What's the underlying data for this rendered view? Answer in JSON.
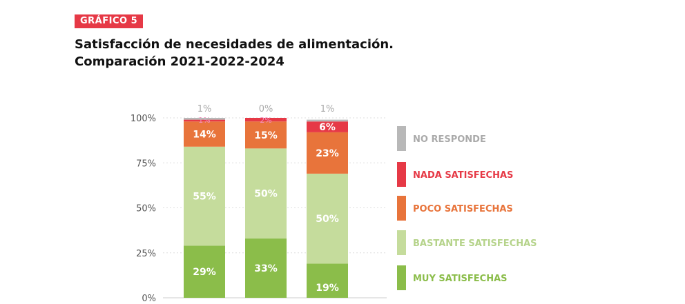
{
  "header": {
    "badge": "GRÁFICO 5",
    "title_line1": "Satisfacción de necesidades de alimentación.",
    "title_line2": "Comparación 2021-2022-2024"
  },
  "chart_data": {
    "type": "bar",
    "stacked": true,
    "yticks": [
      "0%",
      "25%",
      "50%",
      "75%",
      "100%"
    ],
    "ylim": [
      0,
      100
    ],
    "grid": true,
    "legend_position": "right",
    "series": [
      {
        "name": "MUY SATISFECHAS",
        "values": [
          29,
          33,
          19
        ],
        "labels": [
          "29%",
          "33%",
          "19%"
        ],
        "color": "#8bbd4a"
      },
      {
        "name": "BASTANTE SATISFECHAS",
        "values": [
          55,
          50,
          50
        ],
        "labels": [
          "55%",
          "50%",
          "50%"
        ],
        "color": "#c5dc9c",
        "legend_color": "#b5d38a"
      },
      {
        "name": "POCO SATISFECHAS",
        "values": [
          14,
          15,
          23
        ],
        "labels": [
          "14%",
          "15%",
          "23%"
        ],
        "color": "#e8743b"
      },
      {
        "name": "NADA SATISFECHAS",
        "values": [
          1,
          2,
          6
        ],
        "labels": [
          "1%",
          "2%",
          "6%"
        ],
        "color": "#e63946",
        "small_label_color": "#f58fc0"
      },
      {
        "name": "NO RESPONDE",
        "values": [
          1,
          0,
          1
        ],
        "labels": [
          "1%",
          "0%",
          "1%"
        ],
        "color": "#b8b8b8",
        "legend_color": "#aaaaaa"
      }
    ]
  }
}
